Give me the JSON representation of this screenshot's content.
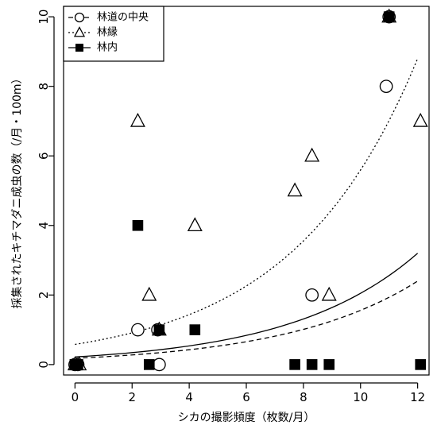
{
  "chart_data": {
    "type": "scatter",
    "xlabel": "シカの撮影頻度（枚数/月）",
    "ylabel": "採集されたキチマダニ成虫の数（/月・100m）",
    "xlim": [
      -0.4,
      12.4
    ],
    "ylim": [
      -0.3,
      10.3
    ],
    "x_ticks": [
      0,
      2,
      4,
      6,
      8,
      10,
      12
    ],
    "y_ticks": [
      0,
      2,
      4,
      6,
      8,
      10
    ],
    "grid": false,
    "legend_position": "top-left",
    "series": [
      {
        "name": "林道の中央",
        "marker": "open-circle",
        "line_style": "dashed",
        "color": "#000000",
        "points": [
          [
            0,
            0
          ],
          [
            0.1,
            0
          ],
          [
            2.2,
            1
          ],
          [
            2.9,
            1
          ],
          [
            2.95,
            0
          ],
          [
            8.3,
            2
          ],
          [
            10.9,
            8
          ],
          [
            11.0,
            10
          ]
        ],
        "fit": [
          [
            0,
            0.18
          ],
          [
            2,
            0.26
          ],
          [
            4,
            0.38
          ],
          [
            6,
            0.56
          ],
          [
            8,
            0.83
          ],
          [
            10,
            1.45
          ],
          [
            12,
            2.4
          ]
        ]
      },
      {
        "name": "林縁",
        "marker": "open-triangle",
        "line_style": "dotted",
        "color": "#000000",
        "points": [
          [
            0,
            0
          ],
          [
            0.15,
            0
          ],
          [
            2.2,
            7
          ],
          [
            2.6,
            2
          ],
          [
            2.95,
            1
          ],
          [
            4.2,
            4
          ],
          [
            7.7,
            5
          ],
          [
            8.3,
            6
          ],
          [
            8.9,
            2
          ],
          [
            11.0,
            10
          ],
          [
            12.1,
            7
          ]
        ],
        "fit": [
          [
            0,
            0.58
          ],
          [
            2,
            0.98
          ],
          [
            4,
            1.6
          ],
          [
            6,
            2.55
          ],
          [
            8,
            4.0
          ],
          [
            10,
            6.2
          ],
          [
            12,
            8.8
          ]
        ]
      },
      {
        "name": "林内",
        "marker": "filled-square",
        "line_style": "solid",
        "color": "#000000",
        "points": [
          [
            0,
            0
          ],
          [
            0.1,
            0
          ],
          [
            2.2,
            4
          ],
          [
            2.6,
            0
          ],
          [
            2.95,
            1
          ],
          [
            4.2,
            1
          ],
          [
            7.7,
            0
          ],
          [
            8.3,
            0
          ],
          [
            8.9,
            0
          ],
          [
            11.0,
            10
          ],
          [
            12.1,
            0
          ]
        ],
        "fit": [
          [
            0,
            0.22
          ],
          [
            2,
            0.33
          ],
          [
            4,
            0.5
          ],
          [
            6,
            0.75
          ],
          [
            8,
            1.15
          ],
          [
            10,
            1.95
          ],
          [
            12,
            3.2
          ]
        ]
      }
    ]
  }
}
